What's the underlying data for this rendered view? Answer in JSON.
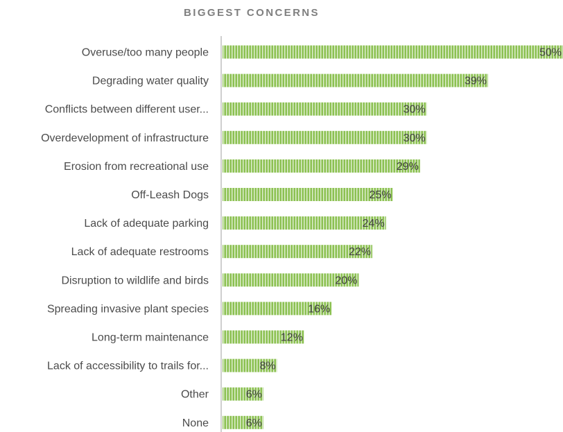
{
  "chart_data": {
    "type": "bar",
    "orientation": "horizontal",
    "title": "BIGGEST CONCERNS",
    "categories": [
      "Overuse/too many people",
      "Degrading water quality",
      "Conflicts between different user...",
      "Overdevelopment of infrastructure",
      "Erosion from recreational use",
      "Off-Leash Dogs",
      "Lack of adequate parking",
      "Lack of adequate restrooms",
      "Disruption to wildlife and birds",
      "Spreading invasive plant species",
      "Long-term maintenance",
      "Lack of accessibility to trails for...",
      "Other",
      "None"
    ],
    "values": [
      50,
      39,
      30,
      30,
      29,
      25,
      24,
      22,
      20,
      16,
      12,
      8,
      6,
      6
    ],
    "value_labels": [
      "50%",
      "39%",
      "30%",
      "30%",
      "29%",
      "25%",
      "24%",
      "22%",
      "20%",
      "16%",
      "12%",
      "8%",
      "6%",
      "6%"
    ],
    "unit": "%",
    "xlim": [
      0,
      50
    ],
    "grid": false,
    "legend": "none",
    "bar_color": "#8cc152",
    "bar_stripe_color": "#ffffff",
    "axis_color": "#bfbfbf"
  }
}
